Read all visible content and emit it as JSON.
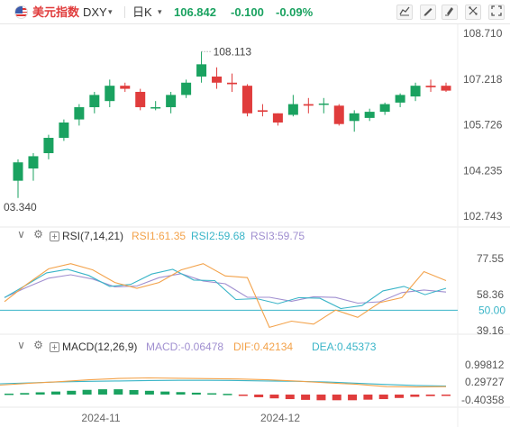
{
  "toolbar": {
    "name": "美元指数",
    "symbol": "DXY",
    "period": "日K",
    "price": "106.842",
    "change": "-0.100",
    "change_pct": "-0.09%",
    "caret": "▾"
  },
  "colors": {
    "up": "#e03c3c",
    "down": "#1aa260",
    "rsi1": "#f3a24a",
    "rsi2": "#3ab5c8",
    "rsi3": "#a08fd0",
    "macd": "#a08fd0",
    "dif": "#f3a24a",
    "dea": "#3ab5c8"
  },
  "price_axis": {
    "labels": [
      "108.710",
      "107.218",
      "105.726",
      "104.235",
      "102.743"
    ],
    "high_marker": "108.113",
    "low_marker": "03.340"
  },
  "rsi_panel": {
    "title": "RSI(7,14,21)",
    "rsi1": "RSI1:61.35",
    "rsi2": "RSI2:59.68",
    "rsi3": "RSI3:59.75",
    "axis_labels": [
      "77.55",
      "58.36",
      "50.00",
      "39.16"
    ]
  },
  "macd_panel": {
    "title": "MACD(12,26,9)",
    "macd": "MACD:-0.06478",
    "dif": "DIF:0.42134",
    "dea": "DEA:0.45373",
    "axis_labels": [
      "0.99812",
      "0.29727",
      "-0.40358"
    ]
  },
  "x_axis": {
    "labels": [
      "2024-11",
      "2024-12"
    ]
  },
  "chart_data": {
    "type": "candlestick",
    "candles": [
      {
        "o": 103.9,
        "h": 104.6,
        "l": 103.34,
        "c": 104.5
      },
      {
        "o": 104.3,
        "h": 104.8,
        "l": 103.9,
        "c": 104.7
      },
      {
        "o": 104.8,
        "h": 105.4,
        "l": 104.6,
        "c": 105.3
      },
      {
        "o": 105.3,
        "h": 105.9,
        "l": 105.2,
        "c": 105.8
      },
      {
        "o": 105.9,
        "h": 106.4,
        "l": 105.7,
        "c": 106.3
      },
      {
        "o": 106.3,
        "h": 106.8,
        "l": 106.1,
        "c": 106.7
      },
      {
        "o": 106.5,
        "h": 107.2,
        "l": 106.3,
        "c": 107.0
      },
      {
        "o": 107.0,
        "h": 107.1,
        "l": 106.8,
        "c": 106.9
      },
      {
        "o": 106.8,
        "h": 106.9,
        "l": 106.2,
        "c": 106.3
      },
      {
        "o": 106.3,
        "h": 106.5,
        "l": 106.2,
        "c": 106.3
      },
      {
        "o": 106.3,
        "h": 106.8,
        "l": 106.1,
        "c": 106.7
      },
      {
        "o": 106.7,
        "h": 107.2,
        "l": 106.6,
        "c": 107.1
      },
      {
        "o": 107.3,
        "h": 108.113,
        "l": 107.1,
        "c": 107.7
      },
      {
        "o": 107.3,
        "h": 107.6,
        "l": 106.9,
        "c": 107.1
      },
      {
        "o": 107.1,
        "h": 107.4,
        "l": 106.8,
        "c": 107.05
      },
      {
        "o": 107.0,
        "h": 107.05,
        "l": 106.0,
        "c": 106.1
      },
      {
        "o": 106.2,
        "h": 106.4,
        "l": 106.0,
        "c": 106.15
      },
      {
        "o": 106.1,
        "h": 106.1,
        "l": 105.7,
        "c": 105.8
      },
      {
        "o": 106.05,
        "h": 106.7,
        "l": 106.0,
        "c": 106.4
      },
      {
        "o": 106.4,
        "h": 106.6,
        "l": 106.1,
        "c": 106.35
      },
      {
        "o": 106.4,
        "h": 106.6,
        "l": 106.1,
        "c": 106.42
      },
      {
        "o": 106.35,
        "h": 106.4,
        "l": 105.7,
        "c": 105.75
      },
      {
        "o": 105.85,
        "h": 106.2,
        "l": 105.5,
        "c": 106.1
      },
      {
        "o": 105.95,
        "h": 106.25,
        "l": 105.85,
        "c": 106.15
      },
      {
        "o": 106.15,
        "h": 106.45,
        "l": 106.05,
        "c": 106.4
      },
      {
        "o": 106.45,
        "h": 106.75,
        "l": 106.3,
        "c": 106.7
      },
      {
        "o": 106.65,
        "h": 107.1,
        "l": 106.5,
        "c": 107.0
      },
      {
        "o": 107.0,
        "h": 107.2,
        "l": 106.8,
        "c": 106.95
      },
      {
        "o": 107.0,
        "h": 107.1,
        "l": 106.8,
        "c": 106.84
      }
    ],
    "price_range": [
      102.743,
      108.71
    ],
    "rsi": {
      "range": [
        39.16,
        77.55
      ],
      "rsi1": [
        54.6,
        63.8,
        72.1,
        74.8,
        71.5,
        64.8,
        61.7,
        64.8,
        71.5,
        74.8,
        68.3,
        67.4,
        40.9,
        44.2,
        42.6,
        50.1,
        46.2,
        54.1,
        56.7,
        70.6,
        65.8
      ],
      "rsi2": [
        56.7,
        63.2,
        69.9,
        71.8,
        68.6,
        62.7,
        63.8,
        69.3,
        71.8,
        66.1,
        65.8,
        55.7,
        56.2,
        53.5,
        56.7,
        56.4,
        50.9,
        52.5,
        60.3,
        62.7,
        58.3,
        61.7
      ],
      "rsi3": [
        56.8,
        62.2,
        67.1,
        68.9,
        66.6,
        62.5,
        62.9,
        67.4,
        69.5,
        65.6,
        64.1,
        56.9,
        56.9,
        54.8,
        57.2,
        56.8,
        53.8,
        54.5,
        59.4,
        60.8,
        59.7
      ]
    },
    "macd": {
      "range": [
        -0.40358,
        0.99812
      ],
      "histogram": [
        0.05,
        0.08,
        0.12,
        0.16,
        0.2,
        0.25,
        0.28,
        0.28,
        0.24,
        0.2,
        0.16,
        0.13,
        0.1,
        0.07,
        0.04,
        -0.06,
        -0.14,
        -0.2,
        -0.24,
        -0.28,
        -0.3,
        -0.3,
        -0.3,
        -0.27,
        -0.24,
        -0.18,
        -0.12,
        -0.08,
        -0.065
      ],
      "dif": [
        0.5,
        0.6,
        0.68,
        0.78,
        0.85,
        0.88,
        0.86,
        0.84,
        0.82,
        0.78,
        0.71,
        0.62,
        0.54,
        0.42,
        0.4,
        0.42
      ],
      "dea": [
        0.57,
        0.62,
        0.67,
        0.7,
        0.72,
        0.74,
        0.75,
        0.75,
        0.74,
        0.72,
        0.7,
        0.66,
        0.6,
        0.53,
        0.48,
        0.45
      ]
    }
  }
}
